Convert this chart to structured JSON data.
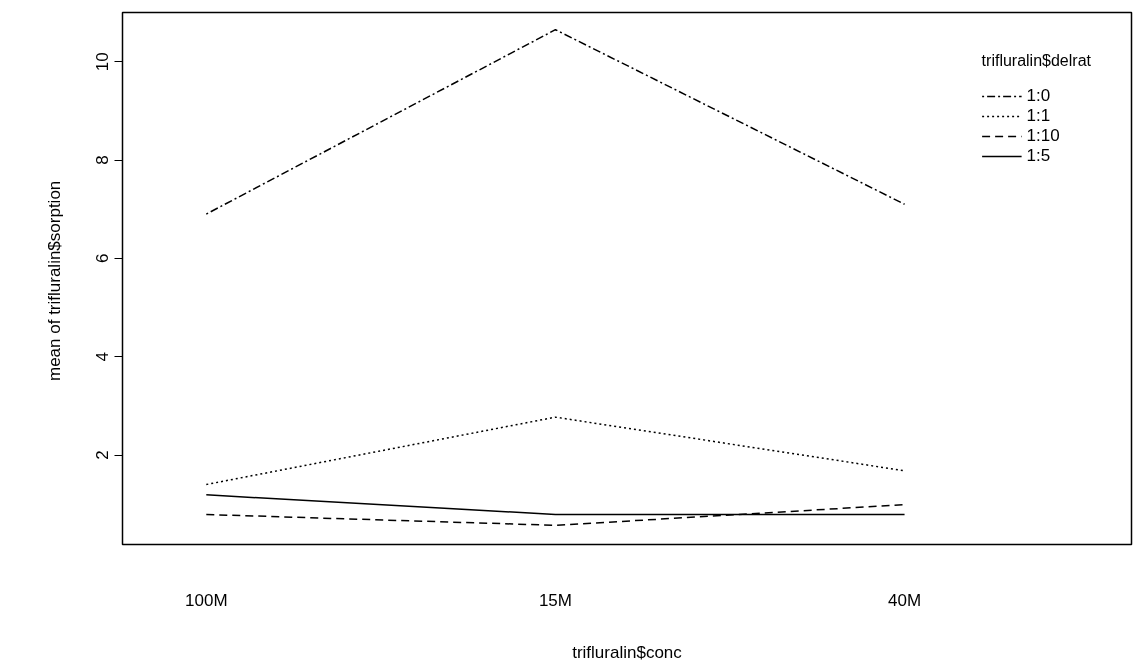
{
  "chart_data": {
    "type": "line",
    "xlabel": "trifluralin$conc",
    "ylabel": "mean of  trifluralin$sorption",
    "legend_title": "trifluralin$delrat",
    "categories": [
      "100M",
      "15M",
      "40M"
    ],
    "series": [
      {
        "name": "1:0",
        "color": "#000000",
        "line_style": "dashdot",
        "values": [
          6.9,
          10.65,
          7.1
        ]
      },
      {
        "name": "1:1",
        "color": "#000000",
        "line_style": "dotted",
        "values": [
          1.4,
          2.77,
          1.68
        ]
      },
      {
        "name": "1:10",
        "color": "#000000",
        "line_style": "dashed",
        "values": [
          0.79,
          0.57,
          0.99
        ]
      },
      {
        "name": "1:5",
        "color": "#000000",
        "line_style": "solid",
        "values": [
          1.19,
          0.79,
          0.79
        ]
      }
    ],
    "ylim": [
      0.18,
      11.0
    ],
    "yticks": [
      2,
      4,
      6,
      8,
      10
    ],
    "grid": false,
    "legend": "top right",
    "marker": "none"
  }
}
